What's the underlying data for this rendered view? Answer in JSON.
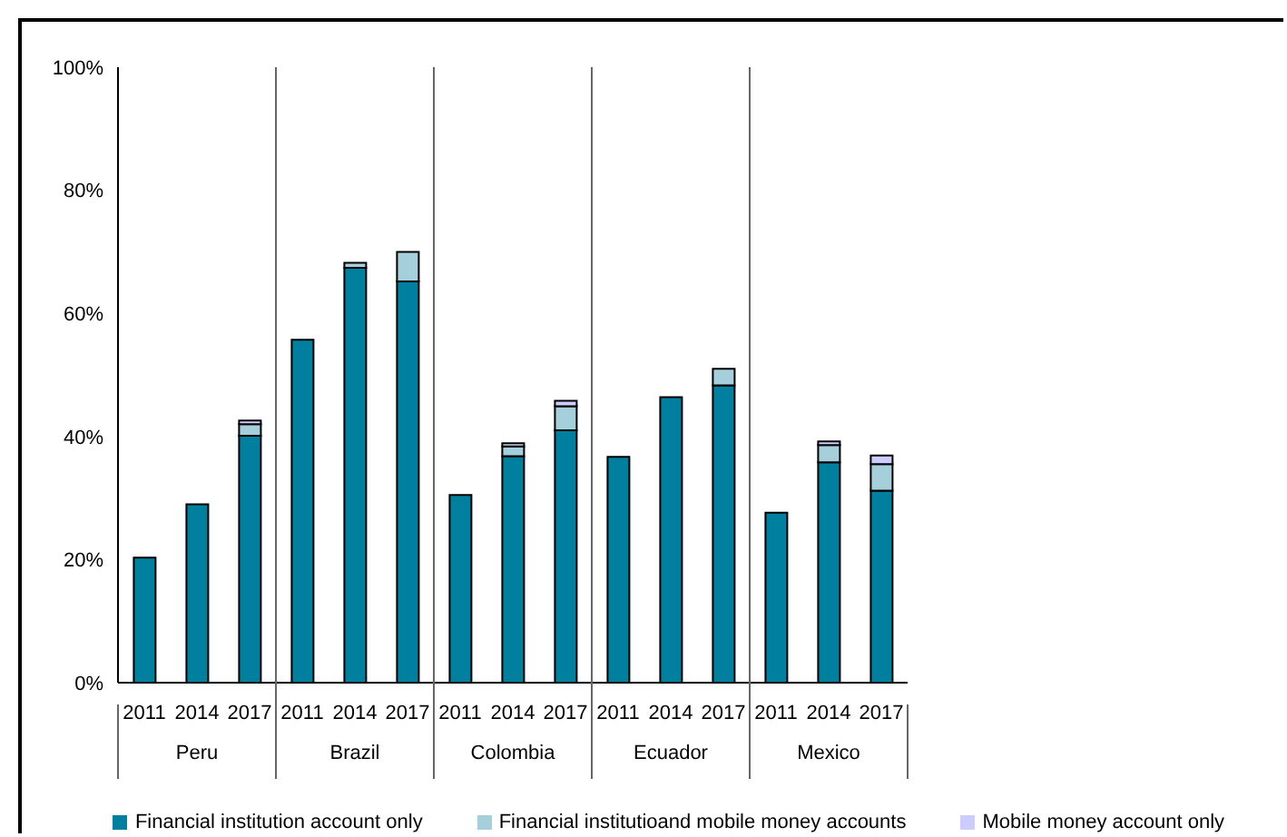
{
  "chart_data": {
    "type": "bar",
    "stacked": true,
    "categories": [
      "2011",
      "2014",
      "2017",
      "2011",
      "2014",
      "2017",
      "2011",
      "2014",
      "2017",
      "2011",
      "2014",
      "2017",
      "2011",
      "2014",
      "2017"
    ],
    "annotations": [
      "Peru",
      "Brazil",
      "Colombia",
      "Ecuador",
      "Mexico"
    ],
    "series": [
      {
        "name": "Financial institution account only",
        "color": "#007f9f",
        "values": [
          20.3,
          29,
          40.1,
          55.7,
          67.4,
          65.2,
          30.5,
          36.8,
          41,
          36.7,
          46.4,
          48.3,
          27.6,
          35.8,
          31.2
        ]
      },
      {
        "name": "Financial institutioand mobile money accounts",
        "color": "#a6cfdc",
        "values": [
          0,
          0,
          1.9,
          0,
          0.8,
          4.8,
          0,
          1.6,
          3.9,
          0,
          0,
          2.7,
          0,
          2.8,
          4.3
        ]
      },
      {
        "name": "Mobile money account only",
        "color": "#ccccff",
        "values": [
          0,
          0,
          0.6,
          0,
          0,
          0,
          0,
          0.5,
          0.9,
          0,
          0,
          null,
          0,
          0.6,
          1.4
        ]
      }
    ],
    "ylim": [
      0,
      100
    ],
    "yticks": [
      {
        "value": 0,
        "label": "0%"
      },
      {
        "value": 20,
        "label": "20%"
      },
      {
        "value": 40,
        "label": "40%"
      },
      {
        "value": 60,
        "label": "60%"
      },
      {
        "value": 80,
        "label": "80%"
      },
      {
        "value": 100,
        "label": "100%"
      }
    ],
    "grid": false,
    "legend": "bottom"
  }
}
